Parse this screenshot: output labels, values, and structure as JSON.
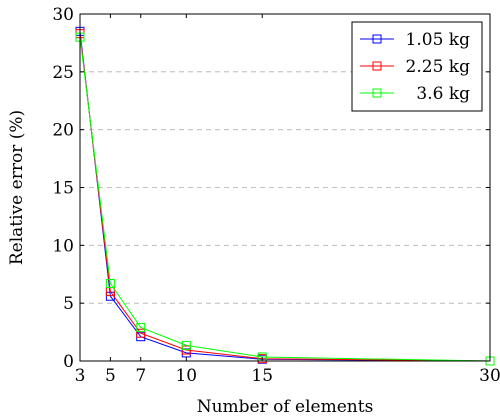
{
  "chart_data": {
    "type": "line",
    "xlabel": "Number of elements",
    "ylabel": "Relative error (%)",
    "xlim": [
      3,
      30
    ],
    "ylim": [
      0,
      30
    ],
    "xticks": [
      3,
      5,
      7,
      10,
      15,
      30
    ],
    "yticks": [
      0,
      5,
      10,
      15,
      20,
      25,
      30
    ],
    "grid": "horizontal dashed",
    "legend_position": "top-right",
    "x": [
      3,
      5,
      7,
      10,
      15,
      30
    ],
    "series": [
      {
        "name": "1.05 kg",
        "color": "#0000ff",
        "marker": "square",
        "values": [
          28.5,
          5.6,
          2.1,
          0.7,
          0.15,
          0.0
        ]
      },
      {
        "name": "2.25 kg",
        "color": "#ff0000",
        "marker": "square",
        "values": [
          28.3,
          6.0,
          2.4,
          0.95,
          0.2,
          0.0
        ]
      },
      {
        "name": "3.6 kg",
        "color": "#00ff00",
        "marker": "square",
        "values": [
          28.0,
          6.7,
          2.9,
          1.35,
          0.35,
          0.0
        ]
      }
    ]
  }
}
